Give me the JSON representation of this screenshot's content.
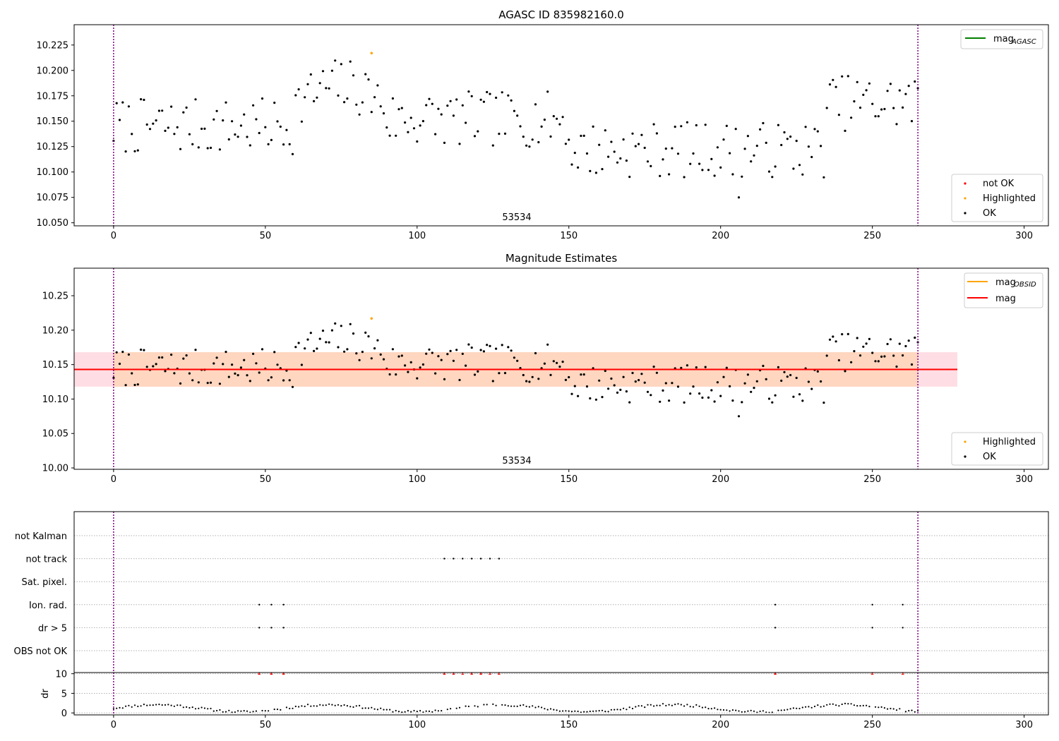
{
  "colors": {
    "ok": "#000000",
    "highlighted": "#ffa500",
    "not_ok": "#ff0000",
    "mag_agasc": "#008000",
    "mag_obsid": "#ffa500",
    "mag": "#ff0000",
    "band_outer": "#ffdde4",
    "band_inner": "#ffd6bf",
    "obs_boundary": "#800080",
    "flag_marker": "#ff0000"
  },
  "icons": {
    "legend_point": "dot",
    "flag_marker": "triangle-up"
  },
  "chart_data": [
    {
      "type": "scatter",
      "title": "AGASC ID 835982160.0",
      "xlim": [
        -13,
        308
      ],
      "ylim": [
        10.047,
        10.245
      ],
      "xticks": [
        0,
        50,
        100,
        150,
        200,
        250,
        300
      ],
      "yticks": [
        10.05,
        10.075,
        10.1,
        10.125,
        10.15,
        10.175,
        10.2,
        10.225
      ],
      "ytick_labels": [
        "10.050",
        "10.075",
        "10.100",
        "10.125",
        "10.150",
        "10.175",
        "10.200",
        "10.225"
      ],
      "obs_boundaries": [
        0,
        265
      ],
      "obs_label": "53534",
      "legend_lines": [
        {
          "label": "mag",
          "sub": "AGASC",
          "color_key": "mag_agasc"
        }
      ],
      "legend_points": [
        {
          "label": "not OK",
          "color_key": "not_ok"
        },
        {
          "label": "Highlighted",
          "color_key": "highlighted"
        },
        {
          "label": "OK",
          "color_key": "ok"
        }
      ],
      "highlighted": {
        "x": [
          85
        ],
        "y": [
          10.217
        ]
      }
    },
    {
      "type": "scatter",
      "title": "Magnitude Estimates",
      "xlim": [
        -13,
        308
      ],
      "ylim": [
        9.998,
        10.29
      ],
      "xticks": [
        0,
        50,
        100,
        150,
        200,
        250,
        300
      ],
      "yticks": [
        10.0,
        10.05,
        10.1,
        10.15,
        10.2,
        10.25
      ],
      "ytick_labels": [
        "10.00",
        "10.05",
        "10.10",
        "10.15",
        "10.20",
        "10.25"
      ],
      "obs_boundaries": [
        0,
        265
      ],
      "obs_label": "53534",
      "mag": 10.143,
      "band_outer": [
        10.118,
        10.168
      ],
      "band_inner": [
        10.118,
        10.168
      ],
      "band_x": [
        -13,
        278
      ],
      "band_inner_x": [
        0,
        265
      ],
      "legend_lines": [
        {
          "label": "mag",
          "sub": "OBSID",
          "color_key": "mag_obsid"
        },
        {
          "label": "mag",
          "sub": "",
          "color_key": "mag"
        }
      ],
      "legend_points": [
        {
          "label": "Highlighted",
          "color_key": "highlighted"
        },
        {
          "label": "OK",
          "color_key": "ok"
        }
      ],
      "highlighted": {
        "x": [
          85
        ],
        "y": [
          10.217
        ]
      }
    },
    {
      "type": "scatter",
      "title": "",
      "xlim": [
        -13,
        308
      ],
      "xticks": [
        0,
        50,
        100,
        150,
        200,
        250,
        300
      ],
      "obs_boundaries": [
        0,
        265
      ],
      "flag_rows": [
        "not Kalman",
        "not track",
        "Sat. pixel.",
        "Ion. rad.",
        "dr > 5",
        "OBS not OK"
      ],
      "flags": {
        "not Kalman": [],
        "not track": [
          109,
          112,
          115,
          118,
          121,
          124,
          127
        ],
        "Sat. pixel.": [],
        "Ion. rad.": [
          48,
          52,
          56,
          218,
          250,
          260
        ],
        "dr > 5": [
          48,
          52,
          56,
          218,
          250,
          260
        ],
        "OBS not OK": []
      },
      "dr_ylabel": "dr",
      "dr_ylim": [
        -0.5,
        10.3
      ],
      "dr_yticks": [
        0,
        5,
        10
      ],
      "dr_clipped_x": [
        48,
        52,
        56,
        109,
        112,
        115,
        118,
        121,
        124,
        127,
        218,
        250,
        260
      ]
    }
  ]
}
